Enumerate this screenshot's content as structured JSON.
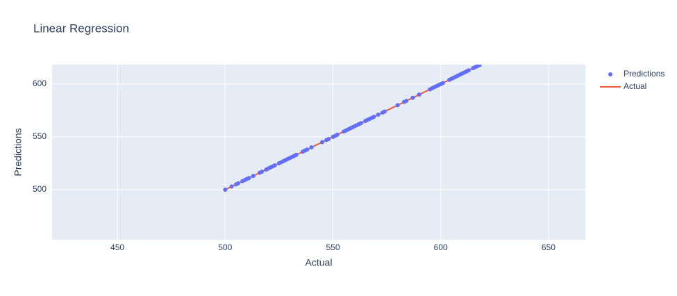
{
  "chart_data": {
    "type": "scatter",
    "title": "Linear Regression",
    "xlabel": "Actual",
    "ylabel": "Predictions",
    "xlim": [
      419.7,
      667.1
    ],
    "ylim": [
      452.6,
      618.4
    ],
    "xticks": [
      450,
      500,
      550,
      600,
      650
    ],
    "yticks": [
      500,
      550,
      600
    ],
    "grid": true,
    "legend": "right",
    "series": [
      {
        "name": "Predictions",
        "mode": "markers",
        "color": "#636efa",
        "x": [
          500,
          503,
          505,
          506,
          508,
          509,
          510,
          511,
          513,
          516,
          517,
          519,
          520,
          521,
          522,
          523,
          525,
          526,
          527,
          528,
          529,
          530,
          531,
          532,
          533,
          536,
          537,
          538,
          540,
          545,
          547,
          548,
          550,
          551,
          552,
          555,
          556,
          557,
          558,
          559,
          560,
          561,
          562,
          563,
          565,
          566,
          567,
          568,
          569,
          571,
          573,
          574,
          580,
          583,
          584,
          587,
          590,
          595,
          596,
          597,
          598,
          599,
          600,
          601,
          604,
          605,
          606,
          607,
          608,
          609,
          610,
          611,
          612,
          613,
          615,
          616,
          617,
          618
        ],
        "values": [
          500,
          503,
          505,
          506,
          508,
          509,
          510,
          511,
          513,
          516,
          517,
          519,
          520,
          521,
          522,
          523,
          525,
          526,
          527,
          528,
          529,
          530,
          531,
          532,
          533,
          536,
          537,
          538,
          540,
          545,
          547,
          548,
          550,
          551,
          552,
          555,
          556,
          557,
          558,
          559,
          560,
          561,
          562,
          563,
          565,
          566,
          567,
          568,
          569,
          571,
          573,
          574,
          580,
          583,
          584,
          587,
          590,
          595,
          596,
          597,
          598,
          599,
          600,
          601,
          604,
          605,
          606,
          607,
          608,
          609,
          610,
          611,
          612,
          613,
          615,
          616,
          617,
          618
        ]
      },
      {
        "name": "Actual",
        "mode": "lines",
        "color": "#ef553b",
        "x": [
          500,
          620
        ],
        "values": [
          500,
          620
        ]
      }
    ]
  }
}
